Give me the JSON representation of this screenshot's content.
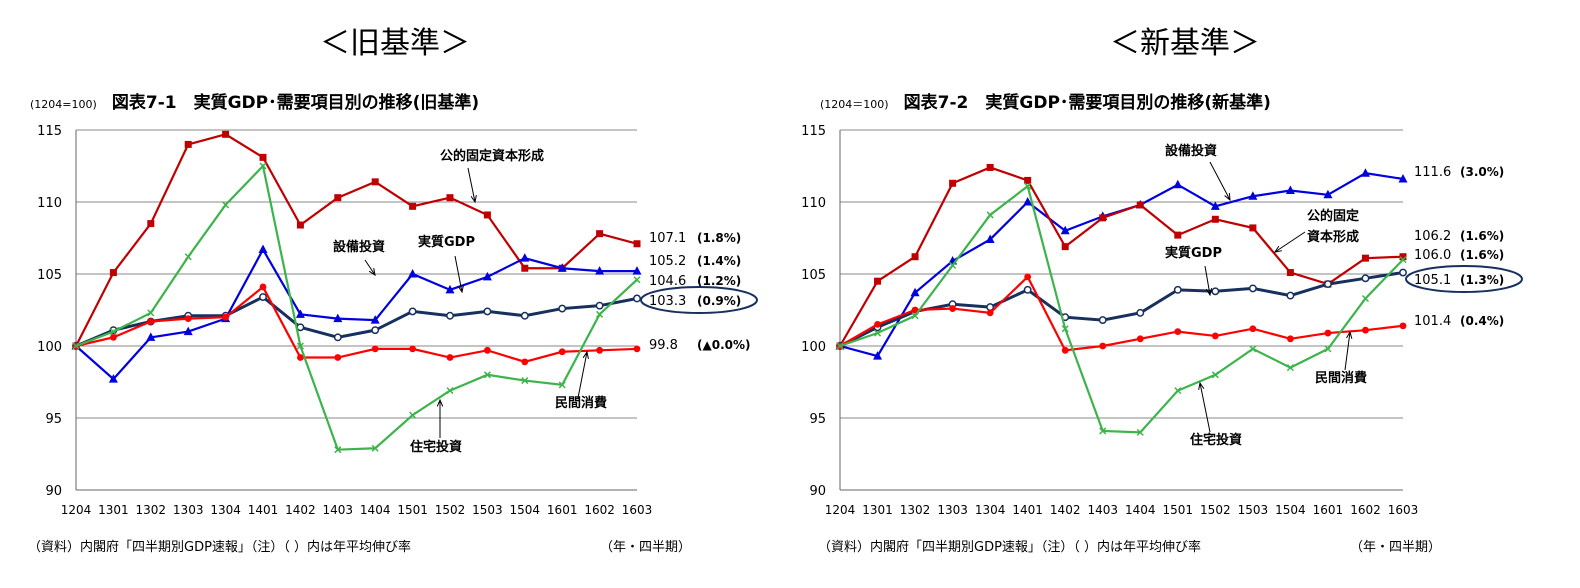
{
  "panels": [
    {
      "heading": "＜旧基準＞",
      "base_label": "(1204=100)",
      "title": "図表7-1　実質GDP･需要項目別の推移(旧基準)",
      "source": "（資料）内閣府「四半期別GDP速報」（注）（ ）内は年平均伸び率",
      "period_label": "（年・四半期）"
    },
    {
      "heading": "＜新基準＞",
      "base_label": "(1204＝100)",
      "title": "図表7-2　実質GDP･需要項目別の推移(新基準)",
      "source": "（資料）内閣府「四半期別GDP速報」（注）（ ）内は年平均伸び率",
      "period_label": "（年・四半期）"
    }
  ],
  "chart_data": [
    {
      "type": "line",
      "title": "図表7-1　実質GDP･需要項目別の推移(旧基準)",
      "x": [
        "1204",
        "1301",
        "1302",
        "1303",
        "1304",
        "1401",
        "1402",
        "1403",
        "1404",
        "1501",
        "1502",
        "1503",
        "1504",
        "1601",
        "1602",
        "1603"
      ],
      "ylim": [
        90,
        115
      ],
      "yticks": [
        90,
        95,
        100,
        105,
        110,
        115
      ],
      "grid": true,
      "series": [
        {
          "name": "公的固定資本形成",
          "color": "#c00000",
          "marker": "square",
          "values": [
            100,
            105.1,
            108.5,
            114.0,
            114.7,
            113.1,
            108.4,
            110.3,
            111.4,
            109.7,
            110.3,
            109.1,
            105.4,
            105.4,
            107.8,
            107.1
          ]
        },
        {
          "name": "設備投資",
          "color": "#0000e0",
          "marker": "triangle",
          "values": [
            100,
            97.7,
            100.6,
            101.0,
            101.9,
            106.7,
            102.2,
            101.9,
            101.8,
            105.0,
            103.9,
            104.8,
            106.1,
            105.4,
            105.2,
            105.2
          ]
        },
        {
          "name": "実質GDP",
          "color": "#17305e",
          "marker": "circle",
          "values": [
            100,
            101.1,
            101.7,
            102.1,
            102.1,
            103.4,
            101.3,
            100.6,
            101.1,
            102.4,
            102.1,
            102.4,
            102.1,
            102.6,
            102.8,
            103.3
          ]
        },
        {
          "name": "民間消費",
          "color": "#ff0000",
          "marker": "dot",
          "values": [
            100,
            100.6,
            101.7,
            101.9,
            102.0,
            104.1,
            99.2,
            99.2,
            99.8,
            99.8,
            99.2,
            99.7,
            98.9,
            99.6,
            99.7,
            99.8
          ]
        },
        {
          "name": "住宅投資",
          "color": "#3cb44b",
          "marker": "x",
          "values": [
            100,
            101.0,
            102.3,
            106.2,
            109.8,
            112.5,
            100.0,
            92.8,
            92.9,
            95.2,
            96.9,
            98.0,
            97.6,
            97.3,
            102.2,
            104.6
          ]
        }
      ],
      "series_labels": [
        {
          "text": "公的固定資本形成"
        },
        {
          "text": "設備投資"
        },
        {
          "text": "実質GDP"
        },
        {
          "text": "民間消費"
        },
        {
          "text": "住宅投資"
        }
      ],
      "end_labels": [
        {
          "value": "107.1",
          "rate": "(1.8%)"
        },
        {
          "value": "105.2",
          "rate": "(1.4%)"
        },
        {
          "value": "104.6",
          "rate": "(1.2%)"
        },
        {
          "value": "103.3",
          "rate": "(0.9%)"
        },
        {
          "value": "99.8",
          "rate": "(▲0.0%)"
        }
      ]
    },
    {
      "type": "line",
      "title": "図表7-2　実質GDP･需要項目別の推移(新基準)",
      "x": [
        "1204",
        "1301",
        "1302",
        "1303",
        "1304",
        "1401",
        "1402",
        "1403",
        "1404",
        "1501",
        "1502",
        "1503",
        "1504",
        "1601",
        "1602",
        "1603"
      ],
      "ylim": [
        90,
        115
      ],
      "yticks": [
        90,
        95,
        100,
        105,
        110,
        115
      ],
      "grid": true,
      "series": [
        {
          "name": "設備投資",
          "color": "#0000e0",
          "marker": "triangle",
          "values": [
            100,
            99.3,
            103.7,
            105.9,
            107.4,
            110.0,
            108.0,
            109.0,
            109.8,
            111.2,
            109.7,
            110.4,
            110.8,
            110.5,
            112.0,
            111.6
          ]
        },
        {
          "name": "公的固定資本形成",
          "color": "#c00000",
          "marker": "square",
          "values": [
            100,
            104.5,
            106.2,
            111.3,
            112.4,
            111.5,
            106.9,
            108.9,
            109.8,
            107.7,
            108.8,
            108.2,
            105.1,
            104.3,
            106.1,
            106.2
          ]
        },
        {
          "name": "実質GDP",
          "color": "#17305e",
          "marker": "circle",
          "values": [
            100,
            101.3,
            102.4,
            102.9,
            102.7,
            103.9,
            102.0,
            101.8,
            102.3,
            103.9,
            103.8,
            104.0,
            103.5,
            104.3,
            104.7,
            105.1
          ]
        },
        {
          "name": "民間消費",
          "color": "#ff0000",
          "marker": "dot",
          "values": [
            100,
            101.5,
            102.5,
            102.6,
            102.3,
            104.8,
            99.7,
            100.0,
            100.5,
            101.0,
            100.7,
            101.2,
            100.5,
            100.9,
            101.1,
            101.4
          ]
        },
        {
          "name": "住宅投資",
          "color": "#3cb44b",
          "marker": "x",
          "values": [
            100,
            100.9,
            102.1,
            105.6,
            109.1,
            111.1,
            101.2,
            94.1,
            94.0,
            96.9,
            98.0,
            99.8,
            98.5,
            99.8,
            103.3,
            106.0
          ]
        }
      ],
      "series_labels": [
        {
          "text": "設備投資"
        },
        {
          "text": "公的固定"
        },
        {
          "text": "資本形成"
        },
        {
          "text": "実質GDP"
        },
        {
          "text": "民間消費"
        },
        {
          "text": "住宅投資"
        }
      ],
      "end_labels": [
        {
          "value": "111.6",
          "rate": "(3.0%)"
        },
        {
          "value": "106.2",
          "rate": "(1.6%)"
        },
        {
          "value": "106.0",
          "rate": "(1.6%)"
        },
        {
          "value": "105.1",
          "rate": "(1.3%)"
        },
        {
          "value": "101.4",
          "rate": "(0.4%)"
        }
      ]
    }
  ]
}
